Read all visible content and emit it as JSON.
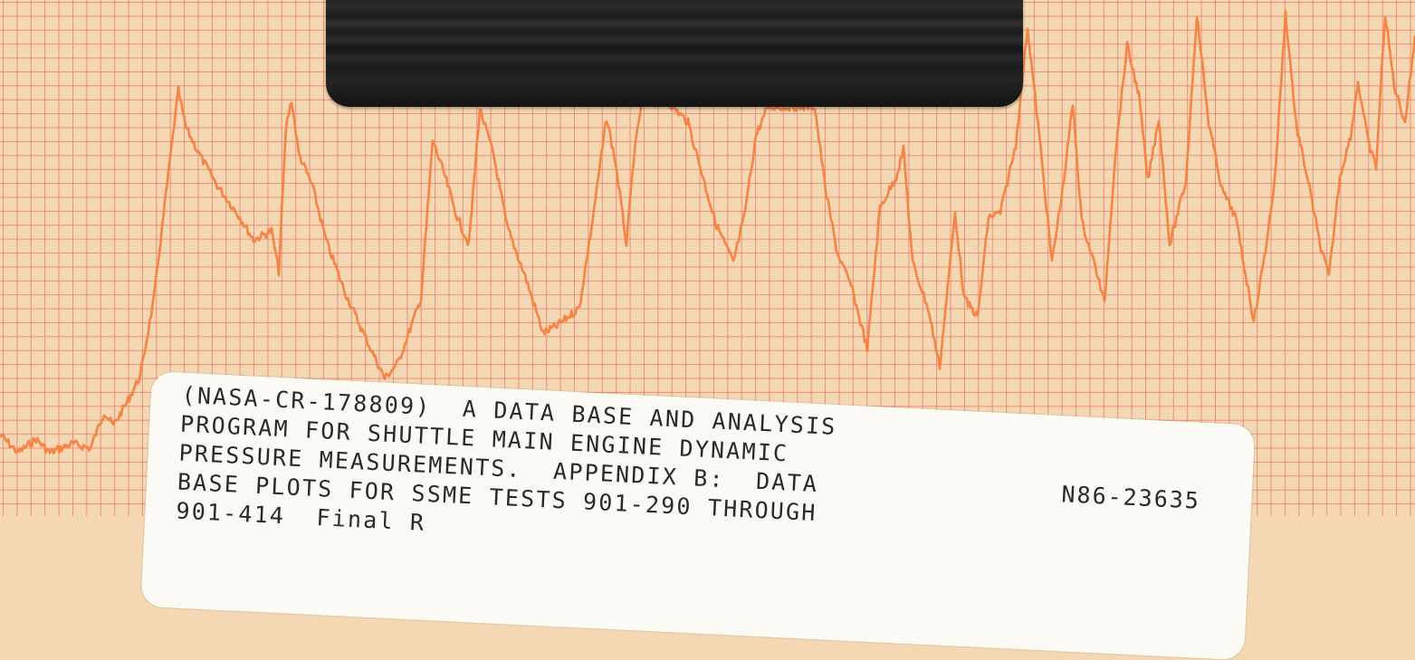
{
  "chart_data": {
    "type": "line",
    "title": "",
    "xlabel": "",
    "ylabel": "",
    "grid": true,
    "colors": {
      "paper": "#f4d7b3",
      "grid": "#eb735f",
      "trace": "#f5803f"
    },
    "series": [
      {
        "name": ""
      }
    ]
  },
  "label": {
    "lines": [
      "(NASA-CR-178809)  A DATA BASE AND ANALYSIS",
      "PROGRAM FOR SHUTTLE MAIN ENGINE DYNAMIC",
      "PRESSURE MEASUREMENTS.  APPENDIX B:  DATA",
      "BASE PLOTS FOR SSME TESTS 901-290 THROUGH",
      "901-414  Final R"
    ],
    "accession": "N86-23635"
  }
}
